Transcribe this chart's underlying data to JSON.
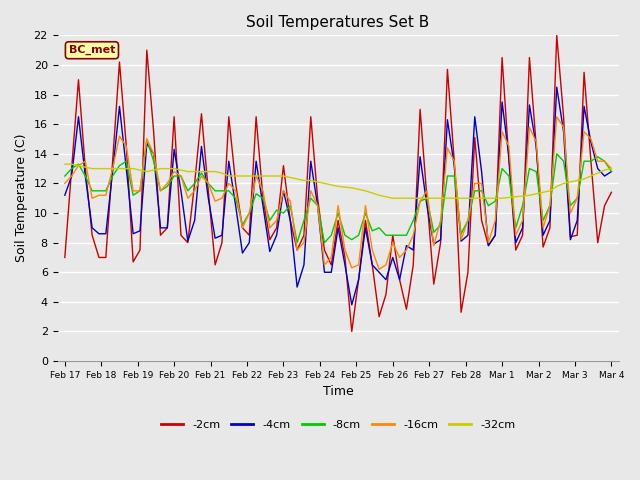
{
  "title": "Soil Temperatures Set B",
  "xlabel": "Time",
  "ylabel": "Soil Temperature (C)",
  "ylim": [
    0,
    22
  ],
  "yticks": [
    0,
    2,
    4,
    6,
    8,
    10,
    12,
    14,
    16,
    18,
    20,
    22
  ],
  "x_labels": [
    "Feb 17",
    "Feb 18",
    "Feb 19",
    "Feb 20",
    "Feb 21",
    "Feb 22",
    "Feb 23",
    "Feb 24",
    "Feb 25",
    "Feb 26",
    "Feb 27",
    "Feb 28",
    "Mar 1",
    "Mar 2",
    "Mar 3",
    "Mar 4"
  ],
  "annotation_label": "BC_met",
  "legend_entries": [
    "-2cm",
    "-4cm",
    "-8cm",
    "-16cm",
    "-32cm"
  ],
  "line_colors": [
    "#cc0000",
    "#0000cc",
    "#00cc00",
    "#ff8800",
    "#cccc00"
  ],
  "background_color": "#e8e8e8",
  "grid_color": "#ffffff",
  "data_2cm": [
    7.0,
    13.0,
    19.0,
    13.0,
    8.5,
    7.0,
    7.0,
    13.5,
    20.2,
    14.5,
    6.7,
    7.5,
    21.0,
    15.5,
    8.5,
    9.0,
    16.5,
    8.5,
    8.0,
    12.0,
    16.7,
    11.5,
    6.5,
    8.0,
    16.5,
    12.0,
    9.0,
    8.5,
    16.5,
    11.0,
    8.2,
    9.0,
    13.2,
    9.5,
    7.5,
    8.5,
    16.5,
    11.0,
    7.5,
    6.5,
    9.5,
    7.0,
    2.0,
    5.5,
    9.5,
    6.5,
    3.0,
    4.5,
    8.5,
    5.5,
    3.5,
    6.5,
    17.0,
    11.0,
    5.2,
    8.0,
    19.7,
    13.5,
    3.3,
    6.0,
    15.1,
    9.5,
    7.8,
    8.5,
    20.5,
    13.5,
    7.5,
    8.5,
    20.5,
    14.5,
    7.7,
    9.0,
    22.0,
    16.5,
    8.4,
    8.5,
    19.5,
    13.5,
    8.0,
    10.5,
    11.4
  ],
  "data_4cm": [
    11.2,
    12.5,
    16.5,
    12.5,
    9.0,
    8.6,
    8.6,
    12.8,
    17.2,
    13.0,
    8.6,
    8.8,
    14.7,
    14.0,
    9.0,
    9.0,
    14.3,
    11.5,
    8.1,
    9.5,
    14.5,
    11.0,
    8.3,
    8.5,
    13.5,
    10.5,
    7.3,
    8.0,
    13.5,
    10.5,
    7.4,
    8.5,
    11.5,
    9.5,
    5.0,
    6.5,
    13.5,
    10.5,
    6.0,
    6.0,
    9.0,
    6.5,
    3.8,
    5.5,
    9.0,
    6.5,
    6.0,
    5.5,
    7.0,
    5.5,
    7.8,
    7.5,
    13.8,
    10.5,
    7.9,
    8.2,
    16.3,
    13.2,
    8.1,
    8.5,
    16.5,
    12.8,
    7.8,
    8.5,
    17.5,
    13.8,
    8.0,
    9.0,
    17.3,
    14.5,
    8.5,
    9.5,
    18.5,
    15.5,
    8.2,
    9.5,
    17.2,
    14.8,
    13.0,
    12.5,
    12.8
  ],
  "data_8cm": [
    12.5,
    13.0,
    13.3,
    12.5,
    11.5,
    11.5,
    11.5,
    12.5,
    13.2,
    13.5,
    11.2,
    11.5,
    15.0,
    13.5,
    11.5,
    11.8,
    12.5,
    12.5,
    11.5,
    12.0,
    12.7,
    12.0,
    11.5,
    11.5,
    11.5,
    11.0,
    9.2,
    10.0,
    11.3,
    11.0,
    9.5,
    10.2,
    10.0,
    10.5,
    8.0,
    9.5,
    11.0,
    10.5,
    8.0,
    8.5,
    10.0,
    8.5,
    8.2,
    8.5,
    10.0,
    8.8,
    9.0,
    8.5,
    8.5,
    8.5,
    8.5,
    9.5,
    10.8,
    11.0,
    8.7,
    9.2,
    12.5,
    12.5,
    8.6,
    9.5,
    11.5,
    11.5,
    10.5,
    10.8,
    13.0,
    12.5,
    9.0,
    10.5,
    13.0,
    12.8,
    9.5,
    10.5,
    14.0,
    13.5,
    10.5,
    11.0,
    13.5,
    13.5,
    13.8,
    13.5,
    12.8
  ],
  "data_16cm": [
    12.0,
    12.5,
    13.2,
    13.5,
    11.0,
    11.2,
    11.2,
    13.0,
    15.2,
    14.5,
    11.5,
    11.5,
    15.0,
    14.0,
    11.5,
    12.0,
    12.8,
    12.5,
    11.0,
    11.5,
    12.5,
    12.0,
    10.8,
    11.0,
    12.0,
    11.5,
    9.0,
    10.0,
    12.5,
    11.5,
    9.0,
    9.5,
    11.5,
    10.8,
    7.5,
    8.0,
    11.5,
    10.5,
    6.5,
    7.0,
    10.5,
    7.5,
    6.3,
    6.5,
    10.5,
    7.5,
    6.2,
    6.5,
    8.0,
    7.0,
    7.5,
    8.5,
    10.8,
    11.5,
    7.8,
    9.5,
    14.4,
    13.5,
    8.2,
    9.5,
    12.0,
    12.0,
    8.0,
    9.5,
    15.5,
    14.5,
    8.5,
    9.5,
    15.8,
    14.8,
    9.0,
    10.5,
    16.5,
    15.8,
    10.0,
    11.0,
    15.5,
    15.0,
    13.5,
    13.5,
    13.0
  ],
  "data_32cm": [
    13.3,
    13.3,
    13.2,
    13.1,
    13.0,
    13.0,
    13.0,
    13.0,
    13.0,
    13.0,
    13.0,
    12.9,
    12.8,
    12.9,
    13.0,
    13.0,
    13.0,
    12.9,
    12.8,
    12.8,
    12.8,
    12.8,
    12.8,
    12.7,
    12.5,
    12.5,
    12.5,
    12.5,
    12.5,
    12.5,
    12.5,
    12.5,
    12.5,
    12.4,
    12.3,
    12.2,
    12.2,
    12.1,
    12.0,
    11.9,
    11.8,
    11.75,
    11.7,
    11.6,
    11.5,
    11.35,
    11.2,
    11.1,
    11.0,
    11.0,
    11.0,
    11.0,
    11.0,
    11.0,
    11.0,
    11.0,
    11.0,
    11.0,
    11.0,
    11.0,
    11.0,
    11.0,
    11.0,
    11.0,
    11.0,
    11.05,
    11.1,
    11.15,
    11.2,
    11.3,
    11.4,
    11.5,
    11.8,
    12.0,
    12.1,
    12.2,
    12.3,
    12.5,
    12.7,
    12.9,
    13.0
  ]
}
